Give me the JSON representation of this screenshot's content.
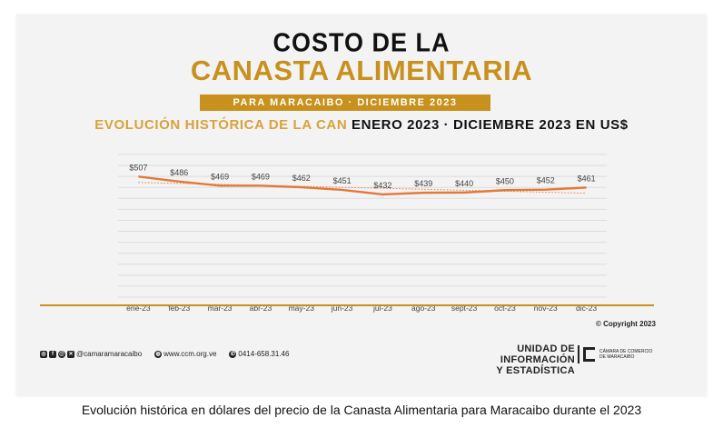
{
  "header": {
    "title_line1": "COSTO DE LA",
    "title_line2": "CANASTA ALIMENTARIA",
    "banner": "PARA MARACAIBO · DICIEMBRE 2023",
    "subtitle_gold": "EVOLUCIÓN HISTÓRICA DE LA CAN",
    "subtitle_black": " ENERO 2023 · DICIEMBRE 2023 EN US$"
  },
  "chart_data": {
    "type": "line",
    "categories": [
      "ene-23",
      "feb-23",
      "mar-23",
      "abr-23",
      "may-23",
      "jun-23",
      "jul-23",
      "ago-23",
      "sept-23",
      "oct-23",
      "nov-23",
      "dic-23"
    ],
    "values": [
      507,
      486,
      469,
      469,
      462,
      451,
      432,
      439,
      440,
      450,
      452,
      461
    ],
    "data_labels": [
      "$507",
      "$486",
      "$469",
      "$469",
      "$462",
      "$451",
      "$432",
      "$439",
      "$440",
      "$450",
      "$452",
      "$461"
    ],
    "trendline": "dotted linear",
    "grid": true,
    "ylim": [
      0,
      600
    ],
    "line_color": "#e07a3a",
    "trend_color": "#e07a3a",
    "grid_color": "#dcdcdc"
  },
  "footer": {
    "copyright": "© Copyright 2023",
    "social_handle": "@camaramaracaibo",
    "website": "www.ccm.org.ve",
    "phone": "0414-658.31.46",
    "unidad_line1": "UNIDAD DE INFORMACIÓN",
    "unidad_line2": "Y ESTADÍSTICA",
    "logo_text": "CÁMARA DE COMERCIO DE MARACAIBO"
  },
  "caption": "Evolución histórica en dólares del precio de la Canasta Alimentaria para Maracaibo durante el 2023"
}
